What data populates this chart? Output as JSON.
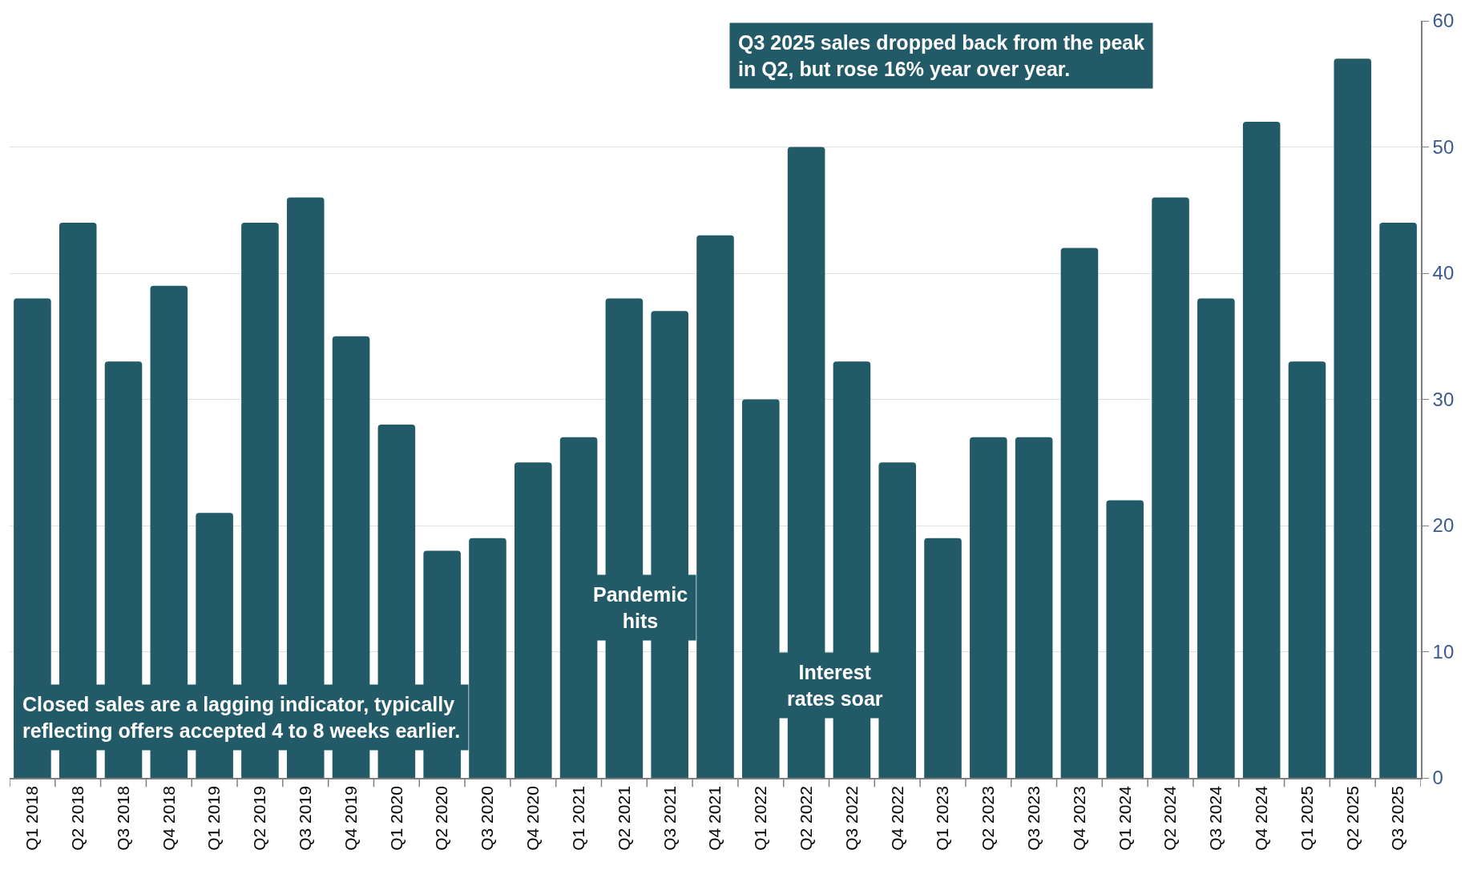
{
  "chart_data": {
    "type": "bar",
    "categories": [
      "Q1 2018",
      "Q2 2018",
      "Q3 2018",
      "Q4 2018",
      "Q1 2019",
      "Q2 2019",
      "Q3 2019",
      "Q4 2019",
      "Q1 2020",
      "Q2 2020",
      "Q3 2020",
      "Q4 2020",
      "Q1 2021",
      "Q2 2021",
      "Q3 2021",
      "Q4 2021",
      "Q1 2022",
      "Q2 2022",
      "Q3 2022",
      "Q4 2022",
      "Q1 2023",
      "Q2 2023",
      "Q3 2023",
      "Q4 2023",
      "Q1 2024",
      "Q2 2024",
      "Q3 2024",
      "Q4 2024",
      "Q1 2025",
      "Q2 2025",
      "Q3 2025"
    ],
    "values": [
      38,
      44,
      33,
      39,
      21,
      44,
      46,
      35,
      28,
      18,
      19,
      25,
      27,
      38,
      37,
      43,
      30,
      50,
      33,
      25,
      19,
      27,
      27,
      42,
      22,
      46,
      38,
      52,
      33,
      57,
      44
    ],
    "color": "#225a68",
    "ylim": [
      0,
      60
    ],
    "yticks": [
      0,
      10,
      20,
      30,
      40,
      50,
      60
    ],
    "grid": "y",
    "annotations": [
      "Q3 2025 sales dropped back from the peak\nin Q2, but rose 16% year over year.",
      "Pandemic\nhits",
      "Interest\nrates soar",
      "Closed sales are a lagging indicator, typically\nreflecting offers accepted 4 to 8 weeks earlier."
    ]
  }
}
